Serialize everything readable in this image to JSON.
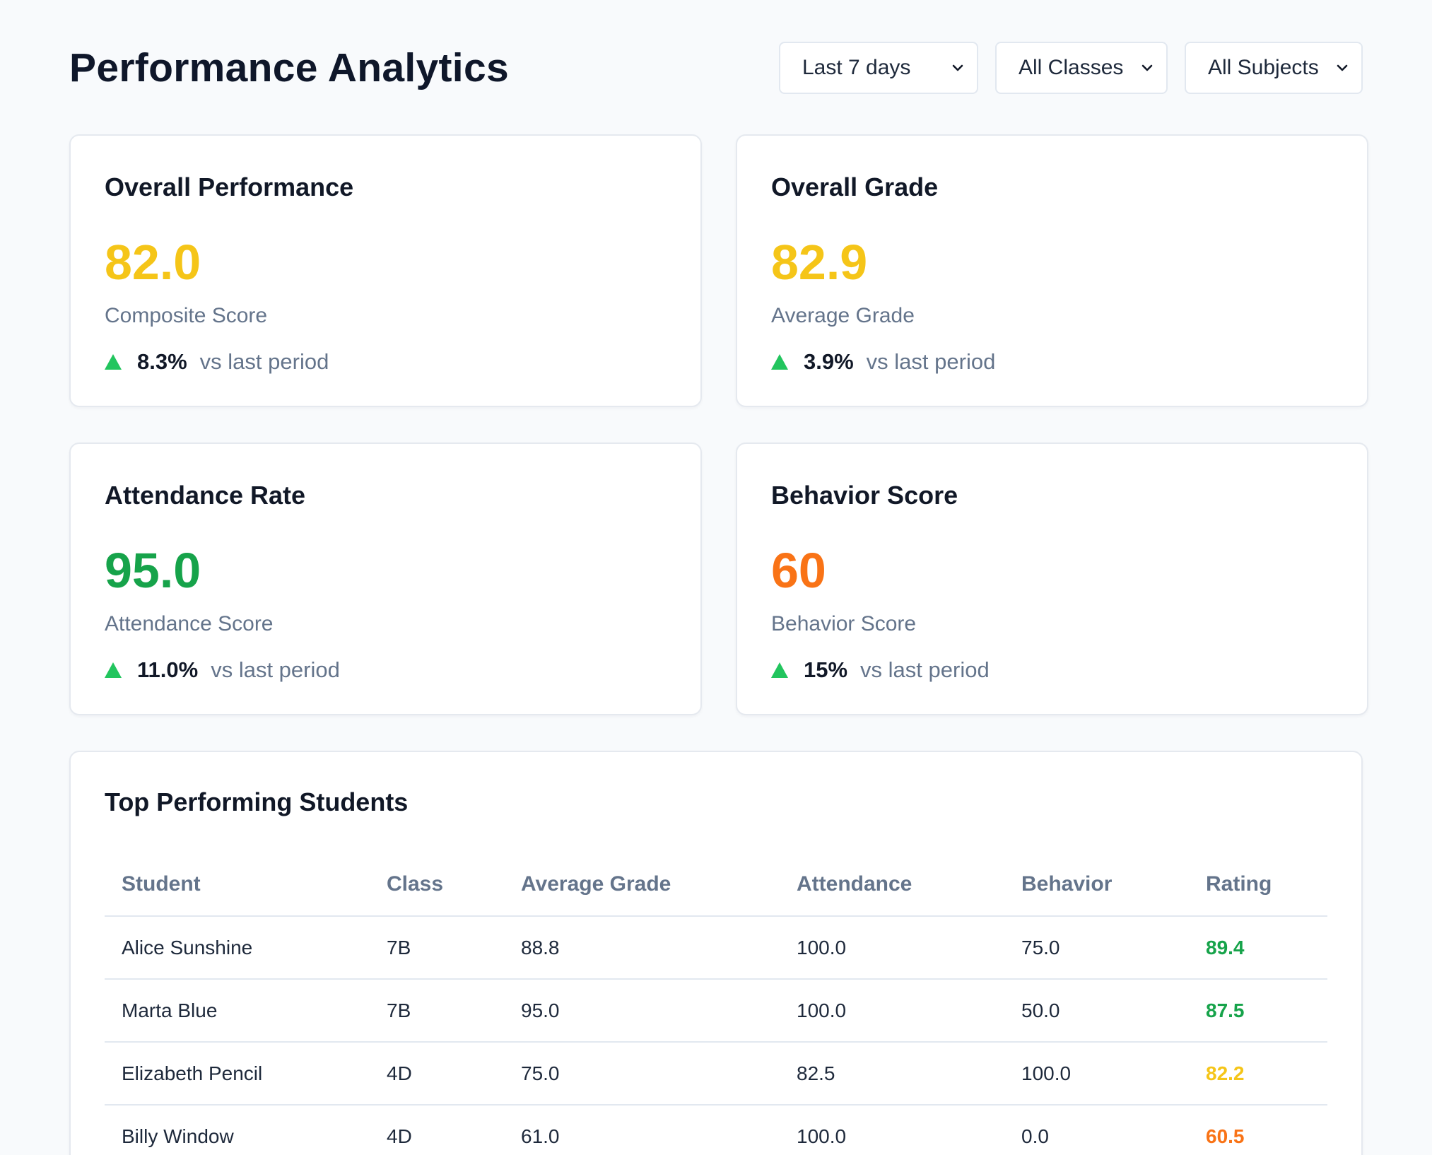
{
  "header": {
    "title": "Performance Analytics"
  },
  "filters": {
    "range": "Last 7 days",
    "class": "All Classes",
    "subject": "All Subjects"
  },
  "colors": {
    "yellow": "#f5c518",
    "green": "#16a34a",
    "orange": "#f97316",
    "trend_up": "#22c55e"
  },
  "cards": [
    {
      "title": "Overall Performance",
      "value": "82.0",
      "value_color": "#f5c518",
      "caption": "Composite Score",
      "trend_pct": "8.3%",
      "trend_label": "vs last period",
      "trend_icon": "triangle-up-icon"
    },
    {
      "title": "Overall Grade",
      "value": "82.9",
      "value_color": "#f5c518",
      "caption": "Average Grade",
      "trend_pct": "3.9%",
      "trend_label": "vs last period",
      "trend_icon": "triangle-up-icon"
    },
    {
      "title": "Attendance Rate",
      "value": "95.0",
      "value_color": "#16a34a",
      "caption": "Attendance Score",
      "trend_pct": "11.0%",
      "trend_label": "vs last period",
      "trend_icon": "triangle-up-icon"
    },
    {
      "title": "Behavior Score",
      "value": "60",
      "value_color": "#f97316",
      "caption": "Behavior Score",
      "trend_pct": "15%",
      "trend_label": "vs last period",
      "trend_icon": "triangle-up-icon"
    }
  ],
  "table": {
    "title": "Top Performing Students",
    "columns": [
      "Student",
      "Class",
      "Average Grade",
      "Attendance",
      "Behavior",
      "Rating"
    ],
    "rows": [
      {
        "student": "Alice Sunshine",
        "class": "7B",
        "grade": "88.8",
        "attendance": "100.0",
        "behavior": "75.0",
        "rating": "89.4",
        "rating_color": "#16a34a"
      },
      {
        "student": "Marta Blue",
        "class": "7B",
        "grade": "95.0",
        "attendance": "100.0",
        "behavior": "50.0",
        "rating": "87.5",
        "rating_color": "#16a34a"
      },
      {
        "student": "Elizabeth Pencil",
        "class": "4D",
        "grade": "75.0",
        "attendance": "82.5",
        "behavior": "100.0",
        "rating": "82.2",
        "rating_color": "#f5c518"
      },
      {
        "student": "Billy Window",
        "class": "4D",
        "grade": "61.0",
        "attendance": "100.0",
        "behavior": "0.0",
        "rating": "60.5",
        "rating_color": "#f97316"
      }
    ]
  }
}
